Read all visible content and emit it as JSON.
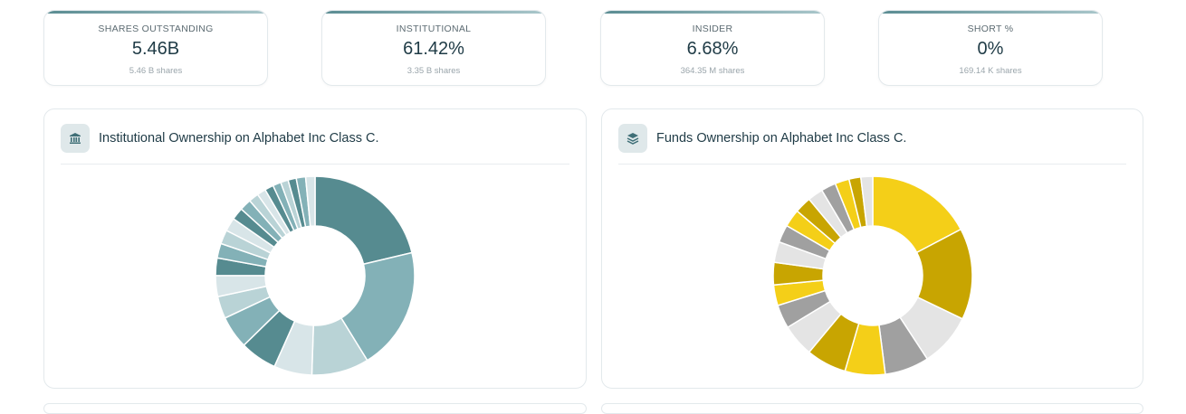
{
  "stats": [
    {
      "label": "SHARES OUTSTANDING",
      "value": "5.46B",
      "sub": "5.46 B shares"
    },
    {
      "label": "INSTITUTIONAL",
      "value": "61.42%",
      "sub": "3.35 B shares"
    },
    {
      "label": "INSIDER",
      "value": "6.68%",
      "sub": "364.35 M shares"
    },
    {
      "label": "SHORT %",
      "value": "0%",
      "sub": "169.14 K shares"
    }
  ],
  "panels": {
    "institutional": {
      "title": "Institutional Ownership on Alphabet Inc Class C.",
      "icon": "bank-icon"
    },
    "funds": {
      "title": "Funds Ownership on Alphabet Inc Class C.",
      "icon": "layers-icon"
    }
  },
  "chart_data": [
    {
      "type": "pie",
      "title": "",
      "values": [
        22.4,
        21.0,
        9.8,
        6.5,
        6.3,
        5.6,
        3.8,
        3.6,
        3.0,
        2.5,
        2.4,
        2.3,
        2.1,
        2.0,
        1.7,
        1.5,
        1.5,
        1.4,
        1.3,
        1.4,
        1.6,
        1.6
      ],
      "colors": [
        "#568b90",
        "#83b1b7",
        "#b9d3d6",
        "#d8e5e8",
        "#568b90",
        "#83b1b7",
        "#b9d3d6",
        "#d8e5e8",
        "#568b90",
        "#83b1b7",
        "#b9d3d6",
        "#d8e5e8",
        "#568b90",
        "#83b1b7",
        "#b9d3d6",
        "#d8e5e8",
        "#568b90",
        "#83b1b7",
        "#b9d3d6",
        "#568b90",
        "#83b1b7",
        "#d8e5e8"
      ],
      "inner_radius_ratio": 0.5
    },
    {
      "type": "pie",
      "title": "",
      "values": [
        18.0,
        15.5,
        9.0,
        7.5,
        6.8,
        6.8,
        5.5,
        4.0,
        3.5,
        3.8,
        3.5,
        3.0,
        3.0,
        2.8,
        2.6,
        2.5,
        2.4,
        2.0,
        2.0
      ],
      "colors": [
        "#f4cf18",
        "#c8a501",
        "#e4e4e4",
        "#a0a0a0",
        "#f4cf18",
        "#c8a501",
        "#e4e4e4",
        "#a0a0a0",
        "#f4cf18",
        "#c8a501",
        "#e4e4e4",
        "#a0a0a0",
        "#f4cf18",
        "#c8a501",
        "#e4e4e4",
        "#a0a0a0",
        "#f4cf18",
        "#c8a501",
        "#e4e4e4"
      ],
      "inner_radius_ratio": 0.5
    }
  ]
}
